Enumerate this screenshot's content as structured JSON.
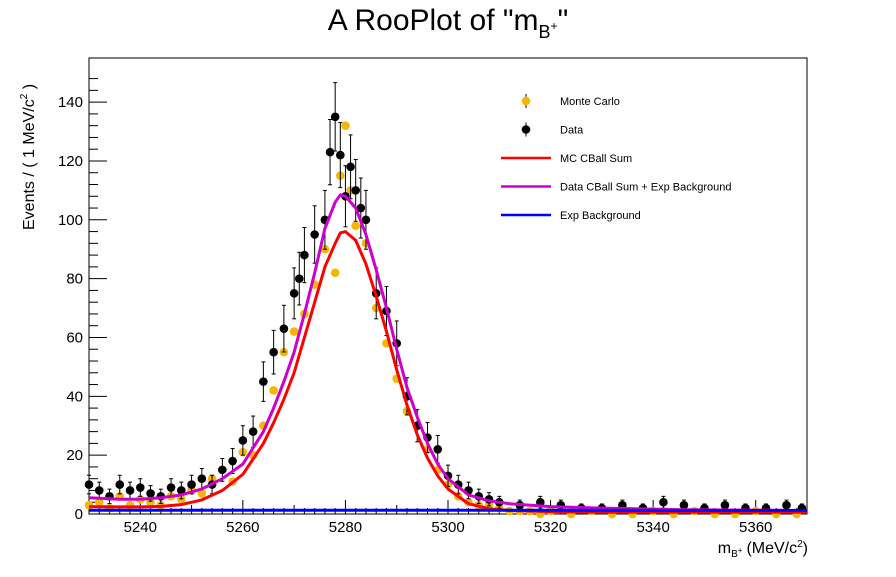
{
  "chart_data": {
    "type": "scatter",
    "title": "A RooPlot of \"m",
    "title_sub": "B",
    "title_sup": "+",
    "title_close": "\"",
    "xlabel": "m",
    "xlabel_sub": "B",
    "xlabel_sup": "+",
    "xlabel_unit": "(MeV/c",
    "xlabel_unit_sup": "2",
    "xlabel_close": ")",
    "ylabel": "Events / ( 1 MeV/c",
    "ylabel_sup": "2",
    "ylabel_close": " )",
    "xlim": [
      5230,
      5370
    ],
    "ylim": [
      0,
      155
    ],
    "x_ticks": [
      5240,
      5260,
      5280,
      5300,
      5320,
      5340,
      5360
    ],
    "y_ticks": [
      0,
      20,
      40,
      60,
      80,
      100,
      120,
      140
    ],
    "legend_position": "top-right",
    "legend": [
      {
        "label": "Monte Carlo",
        "kind": "marker",
        "color": "#f5b800"
      },
      {
        "label": "Data",
        "kind": "marker",
        "color": "#000000"
      },
      {
        "label": "MC CBall Sum",
        "kind": "line",
        "color": "#ff0000"
      },
      {
        "label": "Data CBall Sum + Exp Background",
        "kind": "line",
        "color": "#cc00cc"
      },
      {
        "label": "Exp Background",
        "kind": "line",
        "color": "#0000ff"
      }
    ],
    "colors": {
      "mc": "#f5b800",
      "data": "#000000",
      "mc_fit": "#ff0000",
      "data_fit": "#cc00cc",
      "bkg": "#0000ff"
    },
    "series": [
      {
        "name": "Monte Carlo",
        "kind": "points",
        "x": [
          5230,
          5232,
          5234,
          5236,
          5238,
          5240,
          5242,
          5244,
          5246,
          5248,
          5250,
          5252,
          5254,
          5256,
          5258,
          5260,
          5262,
          5264,
          5266,
          5268,
          5270,
          5272,
          5274,
          5276,
          5278,
          5279,
          5280,
          5281,
          5282,
          5284,
          5286,
          5288,
          5290,
          5292,
          5294,
          5296,
          5298,
          5300,
          5302,
          5304,
          5306,
          5308,
          5310,
          5312,
          5314,
          5316,
          5318,
          5320,
          5324,
          5328,
          5332,
          5336,
          5340,
          5344,
          5348,
          5352,
          5356,
          5360,
          5364,
          5368
        ],
        "y": [
          3,
          4,
          2,
          6,
          3,
          5,
          4,
          3,
          6,
          5,
          8,
          7,
          12,
          15,
          11,
          21,
          20,
          30,
          42,
          55,
          62,
          68,
          78,
          90,
          82,
          115,
          132,
          110,
          98,
          92,
          70,
          58,
          46,
          35,
          30,
          22,
          15,
          10,
          6,
          4,
          3,
          3,
          2,
          1,
          1,
          1,
          0,
          1,
          0,
          1,
          0,
          0,
          1,
          0,
          1,
          0,
          0,
          1,
          0,
          0
        ]
      },
      {
        "name": "Data",
        "kind": "points_errors",
        "x": [
          5230,
          5232,
          5234,
          5236,
          5238,
          5240,
          5242,
          5244,
          5246,
          5248,
          5250,
          5252,
          5254,
          5256,
          5258,
          5260,
          5262,
          5264,
          5266,
          5268,
          5270,
          5271,
          5272,
          5274,
          5276,
          5277,
          5278,
          5279,
          5280,
          5281,
          5282,
          5283,
          5284,
          5286,
          5288,
          5290,
          5292,
          5294,
          5296,
          5298,
          5300,
          5302,
          5304,
          5306,
          5308,
          5310,
          5314,
          5318,
          5322,
          5326,
          5330,
          5334,
          5338,
          5342,
          5346,
          5350,
          5354,
          5358,
          5362,
          5366,
          5369
        ],
        "y": [
          10,
          8,
          6,
          10,
          8,
          9,
          7,
          6,
          9,
          8,
          10,
          12,
          10,
          15,
          18,
          25,
          28,
          45,
          55,
          63,
          75,
          80,
          88,
          95,
          100,
          123,
          135,
          122,
          108,
          118,
          110,
          104,
          100,
          75,
          69,
          58,
          40,
          30,
          26,
          22,
          13,
          10,
          8,
          6,
          5,
          4,
          3,
          4,
          3,
          2,
          2,
          3,
          2,
          4,
          3,
          2,
          3,
          2,
          2,
          3,
          2
        ]
      },
      {
        "name": "MC CBall Sum",
        "kind": "curve",
        "x": [
          5230,
          5236,
          5240,
          5244,
          5248,
          5252,
          5256,
          5260,
          5264,
          5266,
          5268,
          5270,
          5272,
          5274,
          5276,
          5278,
          5279,
          5280,
          5282,
          5284,
          5286,
          5288,
          5290,
          5292,
          5294,
          5296,
          5298,
          5300,
          5304,
          5308,
          5312,
          5320,
          5330,
          5345,
          5370
        ],
        "y": [
          2.5,
          2.4,
          2.4,
          2.6,
          3.2,
          4.8,
          8,
          13.5,
          24,
          31,
          39,
          48,
          60,
          72,
          84,
          92,
          95.5,
          96,
          93,
          85,
          74,
          62,
          49,
          37,
          27,
          19,
          13,
          8.5,
          3.5,
          1.8,
          1.2,
          0.8,
          0.6,
          0.6,
          0.6
        ]
      },
      {
        "name": "Data CBall Sum + Exp Background",
        "kind": "curve",
        "x": [
          5230,
          5236,
          5240,
          5244,
          5248,
          5252,
          5256,
          5260,
          5264,
          5266,
          5268,
          5270,
          5272,
          5274,
          5276,
          5278,
          5279,
          5280,
          5282,
          5284,
          5286,
          5288,
          5290,
          5292,
          5294,
          5296,
          5298,
          5300,
          5304,
          5308,
          5312,
          5320,
          5330,
          5345,
          5370
        ],
        "y": [
          5.5,
          5,
          5,
          5.5,
          6.5,
          8.5,
          12,
          17,
          28,
          36,
          45,
          55,
          68,
          82,
          97,
          106,
          108.5,
          108,
          104,
          95,
          83,
          70,
          56,
          43,
          33,
          24,
          17,
          12,
          6.5,
          4.5,
          3.5,
          2.5,
          2,
          1.5,
          1.2
        ]
      },
      {
        "name": "Exp Background",
        "kind": "curve",
        "x": [
          5230,
          5260,
          5290,
          5320,
          5345,
          5370
        ],
        "y": [
          1.3,
          1.3,
          1.3,
          1.3,
          1.2,
          1.2
        ]
      }
    ]
  }
}
